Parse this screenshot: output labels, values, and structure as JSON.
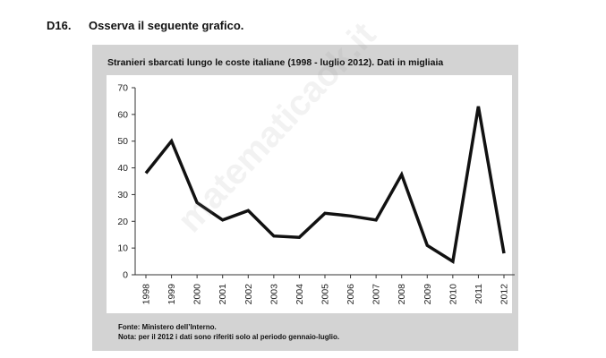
{
  "question": {
    "number": "D16.",
    "text": "Osserva il seguente grafico."
  },
  "chart_data": {
    "type": "line",
    "title": "Stranieri sbarcati lungo le coste italiane (1998 - luglio 2012). Dati in migliaia",
    "xlabel": "",
    "ylabel": "",
    "categories": [
      "1998",
      "1999",
      "2000",
      "2001",
      "2002",
      "2003",
      "2004",
      "2005",
      "2006",
      "2007",
      "2008",
      "2009",
      "2010",
      "2011",
      "2012"
    ],
    "series": [
      {
        "values": [
          38,
          50,
          27,
          20.5,
          24,
          14.5,
          14,
          23,
          22,
          20.5,
          37.5,
          11,
          5,
          63,
          8
        ]
      }
    ],
    "ylim": [
      0,
      70
    ],
    "yticks": [
      0,
      10,
      20,
      30,
      40,
      50,
      60,
      70
    ],
    "grid": false,
    "legend": "none",
    "colors": {
      "line": "#111111",
      "panel_background": "#d3d3d3",
      "plot_background": "#ffffff"
    }
  },
  "footnotes": {
    "source": "Fonte: Ministero dell’Interno.",
    "note": "Nota: per il 2012 i dati sono riferiti solo al periodo gennaio-luglio."
  },
  "watermark": "matematicaok.it"
}
